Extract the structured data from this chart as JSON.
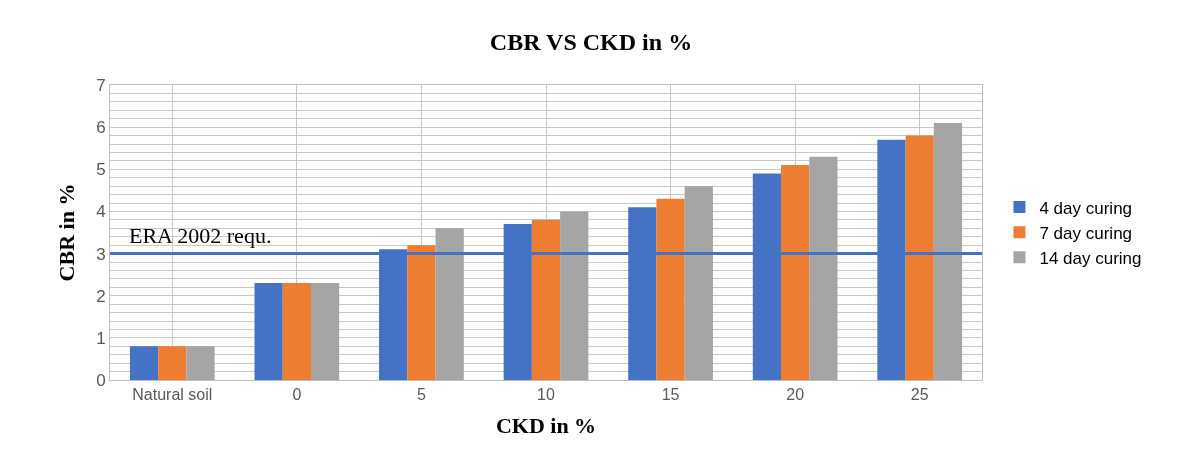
{
  "chart_data": {
    "type": "bar",
    "title": "CBR VS CKD in %",
    "xlabel": "CKD in %",
    "ylabel": "CBR in %",
    "categories": [
      "Natural soil",
      "0",
      "5",
      "10",
      "15",
      "20",
      "25"
    ],
    "series": [
      {
        "name": "4 day curing",
        "color": "#4472c4",
        "values": [
          0.8,
          2.3,
          3.1,
          3.7,
          4.1,
          4.9,
          5.7
        ]
      },
      {
        "name": "7 day curing",
        "color": "#ed7d31",
        "values": [
          0.8,
          2.3,
          3.2,
          3.8,
          4.3,
          5.1,
          5.8
        ]
      },
      {
        "name": "14 day curing",
        "color": "#a5a5a5",
        "values": [
          0.8,
          2.3,
          3.6,
          4.0,
          4.6,
          5.3,
          6.1
        ]
      }
    ],
    "ylim": [
      0,
      7
    ],
    "yticks": [
      0,
      {
        "value": 0.2,
        "label": null
      },
      {
        "value": 0.4,
        "label": null
      },
      {
        "value": 0.6,
        "label": null
      },
      {
        "value": 0.8,
        "label": null
      },
      1,
      {
        "value": 1.2,
        "label": null
      },
      {
        "value": 1.4,
        "label": null
      },
      {
        "value": 1.6,
        "label": null
      },
      {
        "value": 1.8,
        "label": null
      },
      2,
      {
        "value": 2.2,
        "label": null
      },
      {
        "value": 2.4,
        "label": null
      },
      {
        "value": 2.6,
        "label": null
      },
      {
        "value": 2.8,
        "label": null
      },
      3,
      {
        "value": 3.2,
        "label": null
      },
      {
        "value": 3.4,
        "label": null
      },
      {
        "value": 3.6,
        "label": null
      },
      {
        "value": 3.8,
        "label": null
      },
      4,
      {
        "value": 4.2,
        "label": null
      },
      {
        "value": 4.4,
        "label": null
      },
      {
        "value": 4.6,
        "label": null
      },
      {
        "value": 4.8,
        "label": null
      },
      5,
      {
        "value": 5.2,
        "label": null
      },
      {
        "value": 5.4,
        "label": null
      },
      {
        "value": 5.6,
        "label": null
      },
      {
        "value": 5.8,
        "label": null
      },
      6,
      {
        "value": 6.2,
        "label": null
      },
      {
        "value": 6.4,
        "label": null
      },
      {
        "value": 6.6,
        "label": null
      },
      {
        "value": 6.8,
        "label": null
      },
      7
    ],
    "ref_lines": [
      {
        "axis": "y",
        "value": 3,
        "label": "ERA 2002 requ.",
        "color": "#4472c4"
      }
    ],
    "grid": true,
    "legend": "right"
  }
}
